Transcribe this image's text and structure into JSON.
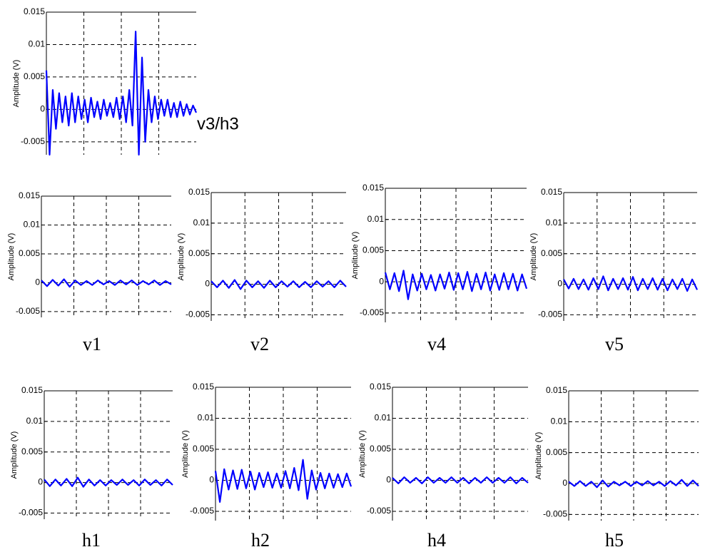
{
  "chart_data": [
    {
      "type": "line",
      "label": "v3/h3",
      "y_label": "Amplitude (V)",
      "color": "#0000ff",
      "ylim": [
        -0.007,
        0.015
      ],
      "yticks": [
        -0.005,
        0,
        0.005,
        0.01,
        0.015
      ],
      "grid": true,
      "values": [
        0.006,
        -0.007,
        0.003,
        -0.003,
        0.0025,
        -0.002,
        0.002,
        -0.0025,
        0.0025,
        -0.002,
        0.002,
        -0.0015,
        0.0015,
        -0.002,
        0.0018,
        -0.0012,
        0.0012,
        -0.0015,
        0.0015,
        -0.001,
        0.001,
        -0.0012,
        0.0018,
        -0.0015,
        0.002,
        -0.002,
        0.003,
        -0.0025,
        0.012,
        -0.007,
        0.008,
        -0.005,
        0.003,
        -0.002,
        0.002,
        -0.0015,
        0.0015,
        -0.001,
        0.0015,
        -0.0012,
        0.001,
        -0.0012,
        0.0012,
        -0.001,
        0.0008,
        -0.0008,
        0.0006,
        -0.0005
      ]
    },
    {
      "type": "line",
      "label": "v1",
      "y_label": "Amplitude (V)",
      "color": "#0000ff",
      "ylim": [
        -0.006,
        0.015
      ],
      "yticks": [
        -0.005,
        0,
        0.005,
        0.01,
        0.015
      ],
      "grid": true,
      "values": [
        0.0004,
        -0.0006,
        0.0005,
        -0.0005,
        0.0006,
        -0.0007,
        0.0004,
        -0.0004,
        0.0003,
        -0.0004,
        0.0004,
        -0.0003,
        0.0003,
        -0.0004,
        0.0004,
        -0.0003,
        0.0004,
        -0.0004,
        0.0003,
        -0.0003,
        0.0004,
        -0.0004,
        0.0003,
        -0.0003
      ]
    },
    {
      "type": "line",
      "label": "v2",
      "y_label": "Amplitude (V)",
      "color": "#0000ff",
      "ylim": [
        -0.006,
        0.015
      ],
      "yticks": [
        -0.005,
        0,
        0.005,
        0.01,
        0.015
      ],
      "grid": true,
      "values": [
        0.0005,
        -0.0005,
        0.0006,
        -0.0006,
        0.0007,
        -0.0008,
        0.0006,
        -0.0005,
        0.0005,
        -0.0006,
        0.0006,
        -0.0005,
        0.0005,
        -0.0004,
        0.0005,
        -0.0005,
        0.0004,
        -0.0005,
        0.0005,
        -0.0004,
        0.0005,
        -0.0005,
        0.0006,
        -0.0004
      ]
    },
    {
      "type": "line",
      "label": "v4",
      "y_label": "Amplitude (V)",
      "color": "#0000ff",
      "ylim": [
        -0.0065,
        0.015
      ],
      "yticks": [
        -0.005,
        0,
        0.005,
        0.01,
        0.015
      ],
      "grid": true,
      "values": [
        0.0015,
        -0.0012,
        0.0014,
        -0.0015,
        0.0018,
        -0.0028,
        0.0012,
        -0.0014,
        0.0013,
        -0.0012,
        0.0011,
        -0.0014,
        0.0012,
        -0.0011,
        0.0015,
        -0.0013,
        0.0014,
        -0.0012,
        0.0016,
        -0.0015,
        0.0013,
        -0.0012,
        0.0015,
        -0.0014,
        0.0012,
        -0.0013,
        0.0014,
        -0.0012,
        0.0013,
        -0.0014,
        0.0012,
        -0.0011
      ]
    },
    {
      "type": "line",
      "label": "v5",
      "y_label": "Amplitude (V)",
      "color": "#0000ff",
      "ylim": [
        -0.006,
        0.015
      ],
      "yticks": [
        -0.005,
        0,
        0.005,
        0.01,
        0.015
      ],
      "grid": true,
      "values": [
        0.0008,
        -0.0007,
        0.0009,
        -0.0008,
        0.0008,
        -0.0009,
        0.001,
        -0.0008,
        0.0013,
        -0.001,
        0.0009,
        -0.0008,
        0.001,
        -0.0009,
        0.0012,
        -0.001,
        0.0009,
        -0.0008,
        0.001,
        -0.0009,
        0.0009,
        -0.001,
        0.0008,
        -0.0008,
        0.0009,
        -0.0011,
        0.0008,
        -0.0009
      ]
    },
    {
      "type": "line",
      "label": "h1",
      "y_label": "Amplitude (V)",
      "color": "#0000ff",
      "ylim": [
        -0.006,
        0.015
      ],
      "yticks": [
        -0.005,
        0,
        0.005,
        0.01,
        0.015
      ],
      "grid": true,
      "values": [
        0.0005,
        -0.0006,
        0.0005,
        -0.0005,
        0.0006,
        -0.0006,
        0.0008,
        -0.0007,
        0.0005,
        -0.0005,
        0.0004,
        -0.0005,
        0.0004,
        -0.0004,
        0.0005,
        -0.0004,
        0.0004,
        -0.0005,
        0.0005,
        -0.0004,
        0.0004,
        -0.0005,
        0.0005,
        -0.0004
      ]
    },
    {
      "type": "line",
      "label": "h2",
      "y_label": "Amplitude (V)",
      "color": "#0000ff",
      "ylim": [
        -0.0065,
        0.015
      ],
      "yticks": [
        -0.005,
        0,
        0.005,
        0.01,
        0.015
      ],
      "grid": true,
      "values": [
        0.0015,
        -0.0035,
        0.0018,
        -0.0015,
        0.0016,
        -0.0014,
        0.0017,
        -0.0013,
        0.0014,
        -0.0015,
        0.0012,
        -0.0011,
        0.0013,
        -0.0012,
        0.0011,
        -0.0012,
        0.0015,
        -0.0013,
        0.002,
        -0.0016,
        0.0033,
        -0.003,
        0.0016,
        -0.0015,
        0.0012,
        -0.0013,
        0.0011,
        -0.0012,
        0.001,
        -0.0011,
        0.0011,
        -0.001
      ]
    },
    {
      "type": "line",
      "label": "h4",
      "y_label": "Amplitude (V)",
      "color": "#0000ff",
      "ylim": [
        -0.0065,
        0.015
      ],
      "yticks": [
        -0.005,
        0,
        0.005,
        0.01,
        0.015
      ],
      "grid": true,
      "values": [
        0.0004,
        -0.0005,
        0.0005,
        -0.0004,
        0.0004,
        -0.0005,
        0.0005,
        -0.0004,
        0.0004,
        -0.0004,
        0.0005,
        -0.0004,
        0.0004,
        -0.0005,
        0.0004,
        -0.0004,
        0.0005,
        -0.0004,
        0.0004,
        -0.0004,
        0.0005,
        -0.0005,
        0.0004,
        -0.0004
      ]
    },
    {
      "type": "line",
      "label": "h5",
      "y_label": "Amplitude (V)",
      "color": "#0000ff",
      "ylim": [
        -0.006,
        0.015
      ],
      "yticks": [
        -0.005,
        0,
        0.005,
        0.01,
        0.015
      ],
      "grid": true,
      "values": [
        0.0003,
        -0.0004,
        0.0004,
        -0.0004,
        0.0003,
        -0.0006,
        0.0005,
        -0.0005,
        0.0003,
        -0.0003,
        0.0003,
        -0.0004,
        0.0003,
        -0.0003,
        0.0004,
        -0.0003,
        0.0003,
        -0.0004,
        0.0004,
        -0.0003,
        0.0006,
        -0.0004,
        0.0005,
        -0.0004
      ]
    }
  ]
}
